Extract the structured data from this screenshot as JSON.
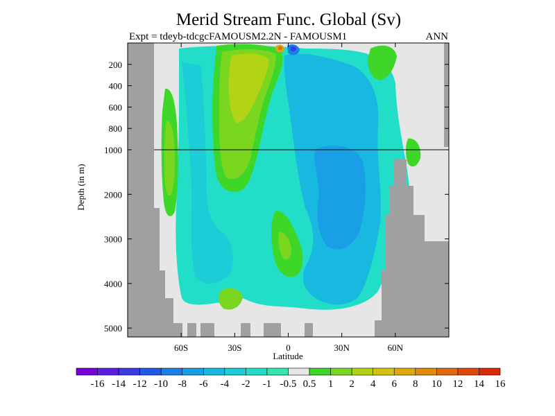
{
  "header": {
    "title": "Merid Stream Func. Global (Sv)",
    "subtitle": "Expt = tdeyb-tdcgcFAMOUSM2.2N - FAMOUSM1",
    "season": "ANN"
  },
  "axes": {
    "ylabel": "Depth (in m)",
    "xlabel": "Latitude"
  },
  "chart_data": {
    "type": "heatmap",
    "title": "Merid Stream Func. Global (Sv)",
    "subtitle": "Expt = tdeyb-tdcgcFAMOUSM2.2N - FAMOUSM1",
    "season": "ANN",
    "xlabel": "Latitude",
    "ylabel": "Depth (in m)",
    "xlim": [
      -90,
      90
    ],
    "x_ticks": [
      -60,
      -30,
      0,
      30,
      60
    ],
    "x_tick_labels": [
      "60S",
      "30S",
      "0",
      "30N",
      "60N"
    ],
    "y_ticks_upper": [
      200,
      400,
      600,
      800,
      1000
    ],
    "y_ticks_lower": [
      2000,
      3000,
      4000,
      5000
    ],
    "y_tick_labels": [
      "200",
      "400",
      "600",
      "800",
      "1000",
      "2000",
      "3000",
      "4000",
      "5000"
    ],
    "ylim": [
      0,
      5200
    ],
    "y_axis_note": "stretched upper 1000 m",
    "reference_line_depth": 1000,
    "colorbar": {
      "levels": [
        "-16",
        "-14",
        "-12",
        "-10",
        "-8",
        "-6",
        "-4",
        "-2",
        "-1",
        "-0.5",
        "0.5",
        "1",
        "2",
        "4",
        "6",
        "8",
        "10",
        "12",
        "14",
        "16"
      ],
      "colors": [
        "#7a00d9",
        "#5a1ee0",
        "#3b3be6",
        "#2059e6",
        "#1a7fe8",
        "#189fe6",
        "#19b8e0",
        "#1ccdd8",
        "#22ddc7",
        "#33e6b0",
        "#e6e6e6",
        "#3fd62a",
        "#7ad61e",
        "#b3d414",
        "#d4c40f",
        "#dea80b",
        "#e08a0a",
        "#e06a08",
        "#e04a06",
        "#d92a04"
      ],
      "neutral_color": "#e6e6e6",
      "land_color": "#a0a0a0"
    }
  }
}
